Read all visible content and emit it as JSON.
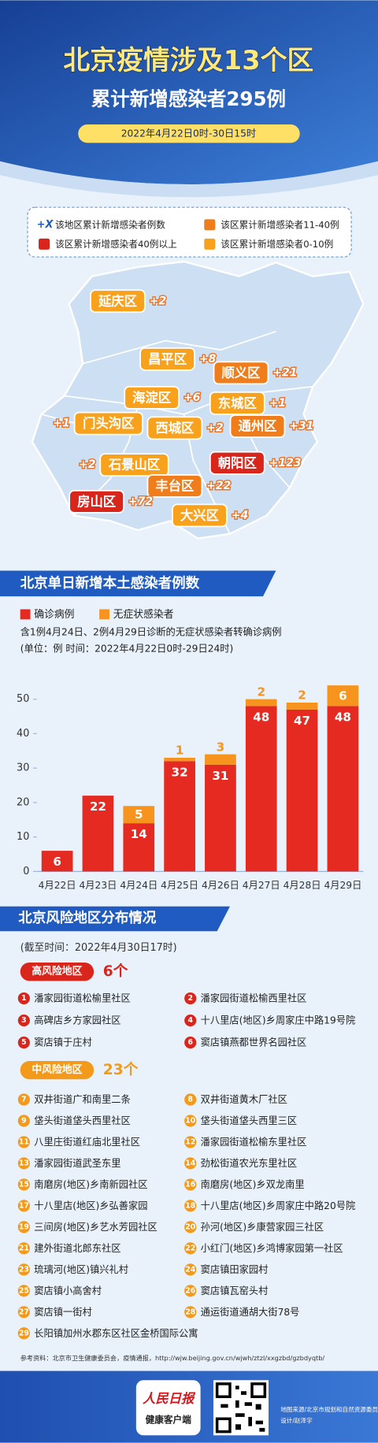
{
  "header": {
    "title": "北京疫情涉及13个区",
    "subtitle": "累计新增感染者295例",
    "date": "2022年4月22日0时-30日15时"
  },
  "legend": {
    "items": [
      {
        "marker": "+X",
        "text": "该地区累计新增感染者例数"
      },
      {
        "color": "#ef7d1b",
        "text": "该区累计新增感染者11-40例"
      },
      {
        "color": "#d9261c",
        "text": "该区累计新增感染者40例以上"
      },
      {
        "color": "#f8a11c",
        "text": "该区累计新增感染者0-10例"
      }
    ]
  },
  "map": {
    "districts": [
      {
        "name": "延庆区",
        "count": "+2",
        "color": "#f8a11c"
      },
      {
        "name": "昌平区",
        "count": "+8",
        "color": "#f8a11c"
      },
      {
        "name": "顺义区",
        "count": "+21",
        "color": "#ef7d1b"
      },
      {
        "name": "海淀区",
        "count": "+6",
        "color": "#f8a11c"
      },
      {
        "name": "东城区",
        "count": "+1",
        "color": "#f8a11c"
      },
      {
        "name": "门头沟区",
        "count": "+1",
        "color": "#f8a11c"
      },
      {
        "name": "西城区",
        "count": "+2",
        "color": "#f8a11c"
      },
      {
        "name": "通州区",
        "count": "+31",
        "color": "#ef7d1b"
      },
      {
        "name": "石景山区",
        "count": "+2",
        "color": "#f8a11c"
      },
      {
        "name": "朝阳区",
        "count": "+123",
        "color": "#d9261c"
      },
      {
        "name": "丰台区",
        "count": "+22",
        "color": "#ef7d1b"
      },
      {
        "name": "房山区",
        "count": "+72",
        "color": "#d9261c"
      },
      {
        "name": "大兴区",
        "count": "+4",
        "color": "#f8a11c"
      }
    ]
  },
  "chart_data": {
    "type": "bar",
    "stacked": true,
    "title": "北京单日新增本土感染者例数",
    "notes": [
      "含1例4月24日、2例4月29日诊断的无症状感染者转确诊病例",
      "(单位：例  时间：2022年4月22日0时-29日24时)"
    ],
    "categories": [
      "4月22日",
      "4月23日",
      "4月24日",
      "4月25日",
      "4月26日",
      "4月27日",
      "4月28日",
      "4月29日"
    ],
    "series": [
      {
        "name": "确诊病例",
        "color": "#e52a22",
        "values": [
          6,
          22,
          14,
          32,
          31,
          48,
          47,
          48
        ]
      },
      {
        "name": "无症状感染者",
        "color": "#f7941d",
        "values": [
          0,
          0,
          5,
          1,
          3,
          2,
          2,
          6
        ]
      }
    ],
    "ylim": [
      0,
      55
    ],
    "yticks": [
      0,
      10,
      20,
      30,
      40,
      50
    ]
  },
  "risk": {
    "title": "北京风险地区分布情况",
    "as_of": "(截至时间：2022年4月30日17时)",
    "high": {
      "label": "高风险地区",
      "count": "6个",
      "color": "#d9261c",
      "items": [
        {
          "no": 1,
          "name": "潘家园街道松榆里社区"
        },
        {
          "no": 2,
          "name": "潘家园街道松榆西里社区"
        },
        {
          "no": 3,
          "name": "高碑店乡方家园社区"
        },
        {
          "no": 4,
          "name": "十八里店(地区)乡周家庄中路19号院"
        },
        {
          "no": 5,
          "name": "窦店镇于庄村"
        },
        {
          "no": 6,
          "name": "窦店镇燕都世界名园社区"
        }
      ]
    },
    "medium": {
      "label": "中风险地区",
      "count": "23个",
      "color": "#f39a1b",
      "items": [
        {
          "no": 7,
          "name": "双井街道广和南里二条"
        },
        {
          "no": 8,
          "name": "双井街道黄木厂社区"
        },
        {
          "no": 9,
          "name": "垡头街道垡头西里社区"
        },
        {
          "no": 10,
          "name": "垡头街道垡头西里三区"
        },
        {
          "no": 11,
          "name": "八里庄街道红庙北里社区"
        },
        {
          "no": 12,
          "name": "潘家园街道松榆东里社区"
        },
        {
          "no": 13,
          "name": "潘家园街道武圣东里"
        },
        {
          "no": 14,
          "name": "劲松街道农光东里社区"
        },
        {
          "no": 15,
          "name": "南磨房(地区)乡南新园社区"
        },
        {
          "no": 16,
          "name": "南磨房(地区)乡双龙南里"
        },
        {
          "no": 17,
          "name": "十八里店(地区)乡弘善家园"
        },
        {
          "no": 18,
          "name": "十八里店(地区)乡周家庄中路20号院"
        },
        {
          "no": 19,
          "name": "三间房(地区)乡艺水芳园社区"
        },
        {
          "no": 20,
          "name": "孙河(地区)乡康营家园三社区"
        },
        {
          "no": 21,
          "name": "建外街道北郎东社区"
        },
        {
          "no": 22,
          "name": "小红门(地区)乡鸿博家园第一社区"
        },
        {
          "no": 23,
          "name": "琉璃河(地区)镇兴礼村"
        },
        {
          "no": 24,
          "name": "窦店镇田家园村"
        },
        {
          "no": 25,
          "name": "窦店镇小高舍村"
        },
        {
          "no": 26,
          "name": "窦店镇瓦窑头村"
        },
        {
          "no": 27,
          "name": "窦店镇一街村"
        },
        {
          "no": 28,
          "name": "通运街道通胡大街78号"
        },
        {
          "no": 29,
          "name": "长阳镇加州水郡东区社区金桥国际公寓"
        }
      ]
    }
  },
  "footer": {
    "reference": "参考资料：北京市卫生健康委员会，疫情通报，http://wjw.beijing.gov.cn/wjwh/ztzl/xxgzbd/gzbdyqtb/",
    "logo_top": "人民日报",
    "logo_bottom": "健康客户端",
    "map_source": "地图来源/北京市规划和自然资源委员会",
    "designer": "设计/赵泽宇"
  }
}
